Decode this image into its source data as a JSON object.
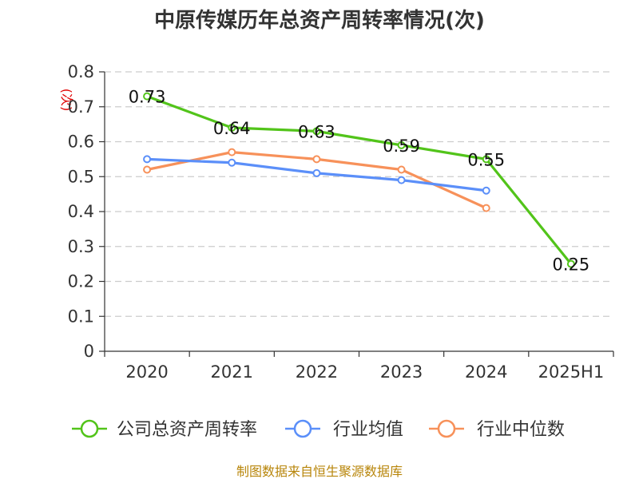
{
  "chart_data": {
    "type": "line",
    "title": "中原传媒历年总资产周转率情况(次)",
    "ylabel": "(次)",
    "ylim": [
      0,
      0.8
    ],
    "yticks": [
      "0",
      "0.1",
      "0.2",
      "0.3",
      "0.4",
      "0.5",
      "0.6",
      "0.7",
      "0.8"
    ],
    "categories": [
      "2020",
      "2021",
      "2022",
      "2023",
      "2024",
      "2025H1"
    ],
    "grid": true,
    "legend_position": "bottom",
    "series": [
      {
        "name": "公司总资产周转率",
        "color": "#52c41a",
        "values": [
          0.73,
          0.64,
          0.63,
          0.59,
          0.55,
          0.25
        ],
        "labels": [
          "0.73",
          "0.64",
          "0.63",
          "0.59",
          "0.55",
          "0.25"
        ]
      },
      {
        "name": "行业均值",
        "color": "#5b8ff9",
        "values": [
          0.55,
          0.54,
          0.51,
          0.49,
          0.46,
          null
        ]
      },
      {
        "name": "行业中位数",
        "color": "#f7915a",
        "values": [
          0.52,
          0.57,
          0.55,
          0.52,
          0.41,
          null
        ]
      }
    ],
    "source": "制图数据来自恒生聚源数据库"
  }
}
